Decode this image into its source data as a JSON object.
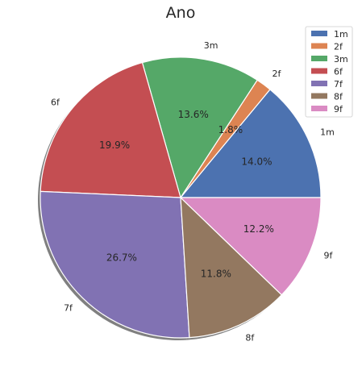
{
  "chart_data": {
    "type": "pie",
    "title": "Ano",
    "shadow": true,
    "legend_position": "top-right",
    "start_angle_deg": 0,
    "direction": "counterclockwise",
    "slices": [
      {
        "label": "1m",
        "value": 14.0,
        "pct_label": "14.0%",
        "color": "#4C72B0"
      },
      {
        "label": "2f",
        "value": 1.8,
        "pct_label": "1.8%",
        "color": "#DD8452"
      },
      {
        "label": "3m",
        "value": 13.6,
        "pct_label": "13.6%",
        "color": "#55A868"
      },
      {
        "label": "6f",
        "value": 19.9,
        "pct_label": "19.9%",
        "color": "#C44E52"
      },
      {
        "label": "7f",
        "value": 26.7,
        "pct_label": "26.7%",
        "color": "#8172B3"
      },
      {
        "label": "8f",
        "value": 11.8,
        "pct_label": "11.8%",
        "color": "#937860"
      },
      {
        "label": "9f",
        "value": 12.2,
        "pct_label": "12.2%",
        "color": "#DA8BC3"
      }
    ]
  }
}
